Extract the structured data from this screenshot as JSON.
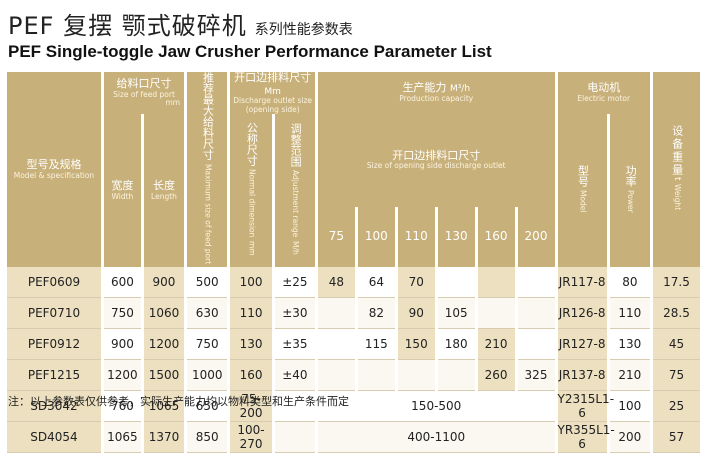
{
  "title_cn": {
    "main": "PEF 复摆 颚式破碎机",
    "sub": "系列性能参数表"
  },
  "title_en": "PEF Single-toggle  Jaw Crusher Performance Parameter List",
  "header": {
    "model": {
      "cn": "型号及规格",
      "en": "Model & specification"
    },
    "feed_port": {
      "cn": "给料口尺寸",
      "en": "Size of feed port",
      "unit": "mm"
    },
    "width": {
      "cn": "宽度",
      "en": "Width"
    },
    "length": {
      "cn": "长度",
      "en": "Length"
    },
    "max_feed": {
      "cn": "推荐最大给料尺寸",
      "en": "Maximum size of feed port"
    },
    "discharge": {
      "cn": "开口边排料尺寸",
      "unit": "Mm",
      "en": "Discharge outlet size",
      "en2": "(opening side)"
    },
    "nominal": {
      "cn": "公称尺寸",
      "en": "Normal dimension",
      "unit": "mm"
    },
    "adjust": {
      "cn": "调整范围",
      "en": "Adjustment range",
      "unit": "M/h"
    },
    "capacity": {
      "cn": "生产能力",
      "unit": "M³/h",
      "en": "Production capacity"
    },
    "opening_size": {
      "cn": "开口边排料口尺寸",
      "en": "Size of opening side discharge outlet"
    },
    "capacity_cols": [
      "75",
      "100",
      "110",
      "130",
      "160",
      "200"
    ],
    "motor": {
      "cn": "电动机",
      "en": "Electric motor"
    },
    "motor_model": {
      "cn": "型号",
      "en": "Model"
    },
    "power": {
      "cn": "功率",
      "en": "Power"
    },
    "weight": {
      "cn": "设备重量",
      "unit": "t",
      "en": "Weight"
    }
  },
  "rows": [
    {
      "model": "PEF0609",
      "width": "600",
      "length": "900",
      "max_feed": "500",
      "nominal": "100",
      "adjust": "±25",
      "cap": [
        "48",
        "64",
        "70",
        "",
        "",
        ""
      ],
      "motor": "JR117-8",
      "power": "80",
      "weight": "17.5"
    },
    {
      "model": "PEF0710",
      "width": "750",
      "length": "1060",
      "max_feed": "630",
      "nominal": "110",
      "adjust": "±30",
      "cap": [
        "",
        "82",
        "90",
        "105",
        "",
        ""
      ],
      "motor": "JR126-8",
      "power": "110",
      "weight": "28.5"
    },
    {
      "model": "PEF0912",
      "width": "900",
      "length": "1200",
      "max_feed": "750",
      "nominal": "130",
      "adjust": "±35",
      "cap": [
        "",
        "115",
        "150",
        "180",
        "210",
        ""
      ],
      "motor": "JR127-8",
      "power": "130",
      "weight": "45"
    },
    {
      "model": "PEF1215",
      "width": "1200",
      "length": "1500",
      "max_feed": "1000",
      "nominal": "160",
      "adjust": "±40",
      "cap": [
        "",
        "",
        "",
        "",
        "260",
        "325"
      ],
      "motor": "JR137-8",
      "power": "210",
      "weight": "75"
    },
    {
      "model": "SD3042",
      "width": "760",
      "length": "1065",
      "max_feed": "650",
      "nominal": "75-200",
      "adjust": "",
      "cap_span": "150-500",
      "motor": "Y2315L1-6",
      "power": "100",
      "weight": "25"
    },
    {
      "model": "SD4054",
      "width": "1065",
      "length": "1370",
      "max_feed": "850",
      "nominal": "100-270",
      "adjust": "",
      "cap_span": "400-1100",
      "motor": "YR355L1-6",
      "power": "200",
      "weight": "57"
    }
  ],
  "note": "注：以上参数表仅供参考，实际生产能力均以物料类型和生产条件而定",
  "colors": {
    "header": "#c8b07a",
    "highlight": "#ece0c0"
  }
}
